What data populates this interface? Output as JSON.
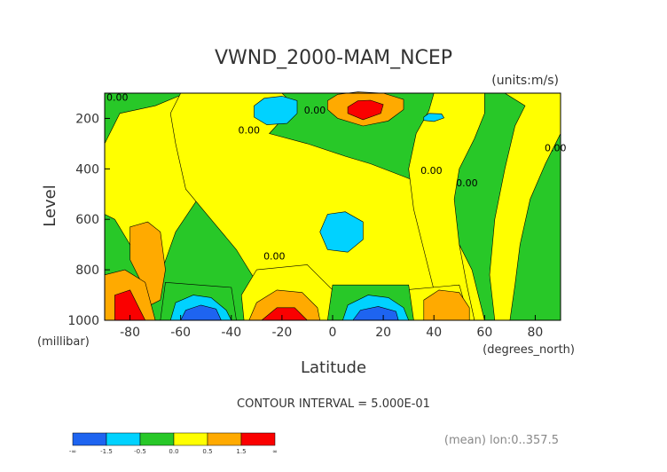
{
  "chart_data": {
    "type": "heatmap",
    "title": "VWND_2000-MAM_NCEP",
    "units_label": "(units:m/s)",
    "xlabel": "Latitude",
    "x_units_label": "(degrees_north)",
    "ylabel": "Level",
    "y_units_label": "(millibar)",
    "xlim": [
      -90,
      90
    ],
    "ylim": [
      1000,
      100
    ],
    "x_ticks": [
      -80,
      -60,
      -40,
      -20,
      0,
      20,
      40,
      60,
      80
    ],
    "y_ticks": [
      200,
      400,
      600,
      800,
      1000
    ],
    "contour_interval_text": "CONTOUR INTERVAL = 5.000E-01",
    "mean_note": "(mean) lon:0..357.5",
    "contour_labels": [
      {
        "text": "0.00",
        "lat": -85,
        "level": 130
      },
      {
        "text": "0.00",
        "lat": -7,
        "level": 180
      },
      {
        "text": "0.00",
        "lat": -33,
        "level": 260
      },
      {
        "text": "0.00",
        "lat": 39,
        "level": 420
      },
      {
        "text": "0.00",
        "lat": 53,
        "level": 470
      },
      {
        "text": "0.00",
        "lat": 88,
        "level": 330
      },
      {
        "text": "0.00",
        "lat": -23,
        "level": 760
      }
    ],
    "colorbar": {
      "colors": [
        "#1e64f0",
        "#00d2ff",
        "#28c828",
        "#ffff00",
        "#ffaa00",
        "#fa0000"
      ],
      "labels": [
        "-∞",
        "-1.5",
        "-0.5",
        "0.0",
        "0.5",
        "1.5",
        "∞"
      ]
    },
    "regions": [
      {
        "name": "green",
        "color": "#28c828",
        "points": [
          [
            -90,
            100
          ],
          [
            90,
            100
          ],
          [
            90,
            1000
          ],
          [
            -90,
            1000
          ]
        ]
      },
      {
        "name": "yellow-sh",
        "color": "#ffff00",
        "points": [
          [
            -70,
            150
          ],
          [
            -58,
            100
          ],
          [
            -45,
            110
          ],
          [
            -40,
            200
          ],
          [
            -37,
            300
          ],
          [
            -40,
            400
          ],
          [
            -52,
            500
          ],
          [
            -62,
            650
          ],
          [
            -68,
            820
          ],
          [
            -74,
            850
          ],
          [
            -80,
            700
          ],
          [
            -86,
            600
          ],
          [
            -90,
            580
          ],
          [
            -90,
            300
          ],
          [
            -84,
            180
          ]
        ]
      },
      {
        "name": "yellow-top",
        "color": "#ffff00",
        "points": [
          [
            -60,
            100
          ],
          [
            -20,
            100
          ],
          [
            -15,
            150
          ],
          [
            -25,
            260
          ],
          [
            -10,
            300
          ],
          [
            5,
            350
          ],
          [
            15,
            380
          ],
          [
            28,
            430
          ],
          [
            38,
            470
          ],
          [
            45,
            600
          ],
          [
            55,
            800
          ],
          [
            60,
            1000
          ],
          [
            -10,
            1000
          ],
          [
            -22,
            930
          ],
          [
            -30,
            850
          ],
          [
            -38,
            720
          ],
          [
            -48,
            600
          ],
          [
            -58,
            480
          ],
          [
            -62,
            300
          ],
          [
            -64,
            180
          ]
        ]
      },
      {
        "name": "yellow-nh-mid",
        "color": "#ffff00",
        "points": [
          [
            40,
            100
          ],
          [
            60,
            100
          ],
          [
            60,
            180
          ],
          [
            56,
            280
          ],
          [
            50,
            400
          ],
          [
            48,
            520
          ],
          [
            50,
            700
          ],
          [
            53,
            860
          ],
          [
            56,
            1000
          ],
          [
            45,
            1000
          ],
          [
            40,
            880
          ],
          [
            36,
            720
          ],
          [
            32,
            560
          ],
          [
            30,
            400
          ],
          [
            33,
            260
          ],
          [
            38,
            170
          ]
        ]
      },
      {
        "name": "yellow-nh-pole",
        "color": "#ffff00",
        "points": [
          [
            68,
            100
          ],
          [
            90,
            100
          ],
          [
            90,
            260
          ],
          [
            84,
            380
          ],
          [
            78,
            520
          ],
          [
            74,
            700
          ],
          [
            72,
            860
          ],
          [
            70,
            1000
          ],
          [
            64,
            1000
          ],
          [
            62,
            820
          ],
          [
            64,
            600
          ],
          [
            68,
            400
          ],
          [
            72,
            230
          ],
          [
            76,
            150
          ]
        ]
      },
      {
        "name": "yellow-sh-low",
        "color": "#ffff00",
        "points": [
          [
            -30,
            800
          ],
          [
            -10,
            780
          ],
          [
            2,
            900
          ],
          [
            -2,
            1000
          ],
          [
            -35,
            1000
          ],
          [
            -36,
            900
          ]
        ]
      },
      {
        "name": "yellow-band-nh",
        "color": "#ffff00",
        "points": [
          [
            28,
            880
          ],
          [
            50,
            860
          ],
          [
            54,
            1000
          ],
          [
            26,
            1000
          ]
        ]
      },
      {
        "name": "green-sh-low",
        "color": "#28c828",
        "points": [
          [
            -66,
            850
          ],
          [
            -40,
            870
          ],
          [
            -38,
            1000
          ],
          [
            -68,
            1000
          ]
        ]
      },
      {
        "name": "green-eq-low",
        "color": "#28c828",
        "points": [
          [
            0,
            860
          ],
          [
            30,
            860
          ],
          [
            32,
            1000
          ],
          [
            -2,
            1000
          ]
        ]
      },
      {
        "name": "orange-jet",
        "color": "#ffaa00",
        "points": [
          [
            -2,
            130
          ],
          [
            2,
            105
          ],
          [
            10,
            95
          ],
          [
            20,
            100
          ],
          [
            28,
            125
          ],
          [
            28,
            165
          ],
          [
            22,
            210
          ],
          [
            12,
            230
          ],
          [
            2,
            200
          ],
          [
            -2,
            165
          ]
        ]
      },
      {
        "name": "red-jet",
        "color": "#fa0000",
        "points": [
          [
            6,
            155
          ],
          [
            10,
            130
          ],
          [
            15,
            128
          ],
          [
            20,
            145
          ],
          [
            19,
            180
          ],
          [
            12,
            205
          ],
          [
            6,
            180
          ]
        ]
      },
      {
        "name": "cyan-top-sh",
        "color": "#00d2ff",
        "points": [
          [
            -31,
            150
          ],
          [
            -27,
            120
          ],
          [
            -20,
            112
          ],
          [
            -14,
            130
          ],
          [
            -14,
            180
          ],
          [
            -18,
            220
          ],
          [
            -26,
            225
          ],
          [
            -31,
            195
          ]
        ]
      },
      {
        "name": "cyan-top-nh",
        "color": "#00d2ff",
        "points": [
          [
            36,
            195
          ],
          [
            38,
            180
          ],
          [
            43,
            182
          ],
          [
            44,
            198
          ],
          [
            40,
            212
          ],
          [
            36,
            208
          ]
        ]
      },
      {
        "name": "cyan-mid",
        "color": "#00d2ff",
        "points": [
          [
            -5,
            650
          ],
          [
            -2,
            580
          ],
          [
            5,
            570
          ],
          [
            12,
            610
          ],
          [
            12,
            680
          ],
          [
            6,
            730
          ],
          [
            -2,
            720
          ]
        ]
      },
      {
        "name": "orange-sh-pole",
        "color": "#ffaa00",
        "points": [
          [
            -80,
            630
          ],
          [
            -73,
            610
          ],
          [
            -68,
            650
          ],
          [
            -66,
            800
          ],
          [
            -68,
            920
          ],
          [
            -72,
            940
          ],
          [
            -76,
            840
          ],
          [
            -80,
            760
          ]
        ]
      },
      {
        "name": "orange-sh-pole-low",
        "color": "#ffaa00",
        "points": [
          [
            -90,
            820
          ],
          [
            -82,
            800
          ],
          [
            -74,
            850
          ],
          [
            -70,
            1000
          ],
          [
            -90,
            1000
          ]
        ]
      },
      {
        "name": "red-sh-pole",
        "color": "#fa0000",
        "points": [
          [
            -86,
            900
          ],
          [
            -80,
            880
          ],
          [
            -76,
            960
          ],
          [
            -74,
            1000
          ],
          [
            -86,
            1000
          ]
        ]
      },
      {
        "name": "blue-sh",
        "color": "#00d2ff",
        "points": [
          [
            -64,
            1000
          ],
          [
            -62,
            930
          ],
          [
            -55,
            900
          ],
          [
            -48,
            910
          ],
          [
            -42,
            960
          ],
          [
            -40,
            1000
          ]
        ]
      },
      {
        "name": "blue-sh-core",
        "color": "#1e64f0",
        "points": [
          [
            -60,
            1000
          ],
          [
            -58,
            960
          ],
          [
            -52,
            940
          ],
          [
            -46,
            955
          ],
          [
            -44,
            1000
          ]
        ]
      },
      {
        "name": "orange-sh-low",
        "color": "#ffaa00",
        "points": [
          [
            -33,
            1000
          ],
          [
            -30,
            930
          ],
          [
            -22,
            880
          ],
          [
            -12,
            890
          ],
          [
            -6,
            950
          ],
          [
            -5,
            1000
          ]
        ]
      },
      {
        "name": "red-sh-low",
        "color": "#fa0000",
        "points": [
          [
            -28,
            1000
          ],
          [
            -22,
            950
          ],
          [
            -15,
            950
          ],
          [
            -10,
            1000
          ]
        ]
      },
      {
        "name": "blue-eq",
        "color": "#00d2ff",
        "points": [
          [
            4,
            1000
          ],
          [
            6,
            940
          ],
          [
            14,
            900
          ],
          [
            22,
            910
          ],
          [
            28,
            950
          ],
          [
            30,
            1000
          ]
        ]
      },
      {
        "name": "blue-eq-core",
        "color": "#1e64f0",
        "points": [
          [
            8,
            1000
          ],
          [
            11,
            960
          ],
          [
            18,
            945
          ],
          [
            25,
            965
          ],
          [
            26,
            1000
          ]
        ]
      },
      {
        "name": "orange-nh-low",
        "color": "#ffaa00",
        "points": [
          [
            36,
            1000
          ],
          [
            36,
            920
          ],
          [
            42,
            880
          ],
          [
            50,
            890
          ],
          [
            54,
            950
          ],
          [
            54,
            1000
          ]
        ]
      }
    ]
  }
}
